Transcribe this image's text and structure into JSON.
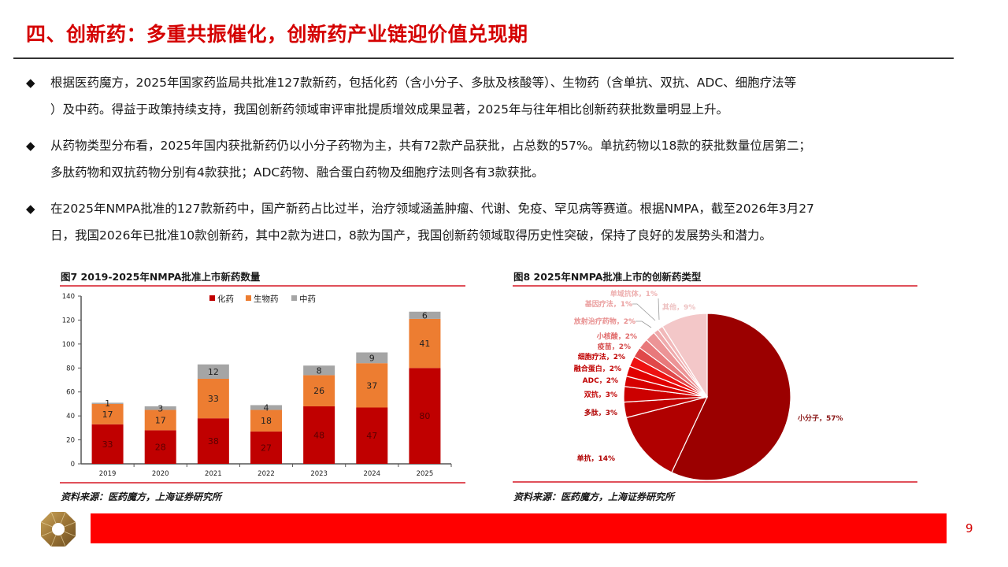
{
  "header": {
    "title": "四、创新药：多重共振催化，创新药产业链迎价值兑现期"
  },
  "bullets": [
    {
      "icon": "diamond-bullet-icon",
      "line1": "根据医药魔方，2025年国家药监局共批准127款新药，包括化药（含小分子、多肽及核酸等）、生物药（含单抗、双抗、ADC、细胞疗法等",
      "line2": "）及中药。得益于政策持续支持，我国创新药领域审评审批提质增效成果显著，2025年与往年相比创新药获批数量明显上升。"
    },
    {
      "icon": "diamond-bullet-icon",
      "line1": "从药物类型分布看，2025年国内获批新药仍以小分子药物为主，共有72款产品获批，占总数的57%。单抗药物以18款的获批数量位居第二；",
      "line2": "多肽药物和双抗药物分别有4款获批；ADC药物、融合蛋白药物及细胞疗法则各有3款获批。"
    },
    {
      "icon": "diamond-bullet-icon",
      "line1": "在2025年NMPA批准的127款新药中，国产新药占比过半，治疗领域涵盖肿瘤、代谢、免疫、罕见病等赛道。根据NMPA，截至2026年3月27",
      "line2": "日，我国2026年已批准10款创新药，其中2款为进口，8款为国产，我国创新药领域取得历史性突破，保持了良好的发展势头和潜力。"
    }
  ],
  "figure7": {
    "title": "图7  2019-2025年NMPA批准上市新药数量",
    "source": "资料来源：医药魔方，上海证券研究所"
  },
  "figure8": {
    "title": "图8  2025年NMPA批准上市的创新药类型",
    "source": "资料来源：医药魔方，上海证券研究所"
  },
  "footer": {
    "page_number": "9",
    "bar_color": "#ff0000",
    "logo_icon": "octagon-logo-icon"
  },
  "colors": {
    "title_red": "#d40000",
    "chem": "#c00000",
    "bio": "#ed7d31",
    "tcm": "#a5a5a5"
  },
  "chart_data": [
    {
      "type": "bar",
      "stacked": true,
      "title": "图7  2019-2025年NMPA批准上市新药数量",
      "categories": [
        "2019",
        "2020",
        "2021",
        "2022",
        "2023",
        "2024",
        "2025"
      ],
      "series": [
        {
          "name": "化药",
          "color": "#c00000",
          "values": [
            33,
            28,
            38,
            27,
            48,
            47,
            80
          ]
        },
        {
          "name": "生物药",
          "color": "#ed7d31",
          "values": [
            17,
            17,
            33,
            18,
            26,
            37,
            41
          ]
        },
        {
          "name": "中药",
          "color": "#a5a5a5",
          "values": [
            1,
            3,
            12,
            4,
            8,
            9,
            6
          ]
        }
      ],
      "xlabel": "",
      "ylabel": "",
      "ylim": [
        0,
        140
      ],
      "yticks": [
        0,
        20,
        40,
        60,
        80,
        100,
        120,
        140
      ],
      "legend_position": "top-right",
      "grid": false
    },
    {
      "type": "pie",
      "title": "图8  2025年NMPA批准上市的创新药类型",
      "slices": [
        {
          "label": "小分子",
          "value": 57,
          "color": "#9b0000"
        },
        {
          "label": "单抗",
          "value": 14,
          "color": "#b00000"
        },
        {
          "label": "多肽",
          "value": 3,
          "color": "#c00000"
        },
        {
          "label": "双抗",
          "value": 3,
          "color": "#cc0000"
        },
        {
          "label": "ADC",
          "value": 2,
          "color": "#d60000"
        },
        {
          "label": "融合蛋白",
          "value": 2,
          "color": "#e00000"
        },
        {
          "label": "细胞疗法",
          "value": 2,
          "color": "#ee1111"
        },
        {
          "label": "疫苗",
          "value": 2,
          "color": "#e0484a"
        },
        {
          "label": "小核酸",
          "value": 2,
          "color": "#e8797b"
        },
        {
          "label": "放射治疗药物",
          "value": 2,
          "color": "#ec9496"
        },
        {
          "label": "基因疗法",
          "value": 1,
          "color": "#efaaac"
        },
        {
          "label": "单域抗体",
          "value": 1,
          "color": "#f1b8b9"
        },
        {
          "label": "其他",
          "value": 9,
          "color": "#f3c7c8"
        }
      ],
      "unit": "%"
    }
  ]
}
